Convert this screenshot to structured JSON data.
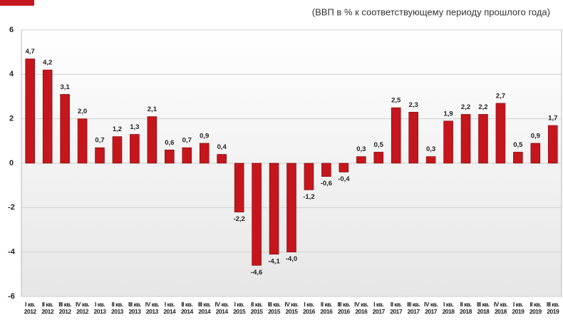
{
  "chart_data": {
    "type": "bar",
    "subtitle": "(ВВП в % к соответствующему периоду прошлого года)",
    "categories": [
      "I кв. 2012",
      "II кв. 2012",
      "III кв. 2012",
      "IV кв. 2012",
      "I кв. 2013",
      "II кв. 2013",
      "III кв. 2013",
      "IV кв. 2013",
      "I кв. 2014",
      "II кв. 2014",
      "III кв. 2014",
      "IV кв. 2014",
      "I кв. 2015",
      "II кв. 2015",
      "III кв. 2015",
      "IV кв. 2015",
      "I кв. 2016",
      "II кв. 2016",
      "III кв. 2016",
      "IV кв. 2016",
      "I кв. 2017",
      "II кв. 2017",
      "III кв. 2017",
      "IV кв. 2017",
      "I кв. 2018",
      "II кв. 2018",
      "III кв. 2018",
      "IV кв. 2018",
      "I кв. 2019",
      "II кв. 2019",
      "III кв. 2019"
    ],
    "values": [
      4.7,
      4.2,
      3.1,
      2.0,
      0.7,
      1.2,
      1.3,
      2.1,
      0.6,
      0.7,
      0.9,
      0.4,
      -2.2,
      -4.6,
      -4.1,
      -4.0,
      -1.2,
      -0.6,
      -0.4,
      0.3,
      0.5,
      2.5,
      2.3,
      0.3,
      1.9,
      2.2,
      2.2,
      2.7,
      0.5,
      0.9,
      1.7
    ],
    "value_labels": [
      "4,7",
      "4,2",
      "3,1",
      "2,0",
      "0,7",
      "1,2",
      "1,3",
      "2,1",
      "0,6",
      "0,7",
      "0,9",
      "0,4",
      "-2,2",
      "-4,6",
      "-4,1",
      "-4,0",
      "-1,2",
      "-0,6",
      "-0,4",
      "0,3",
      "0,5",
      "2,5",
      "2,3",
      "0,3",
      "1,9",
      "2,2",
      "2,2",
      "2,7",
      "0,5",
      "0,9",
      "1,7"
    ],
    "color": "#c4161c",
    "ylim": [
      -6,
      6
    ],
    "yticks": [
      6,
      4,
      2,
      0,
      -2,
      -4,
      -6
    ],
    "grid": true
  }
}
